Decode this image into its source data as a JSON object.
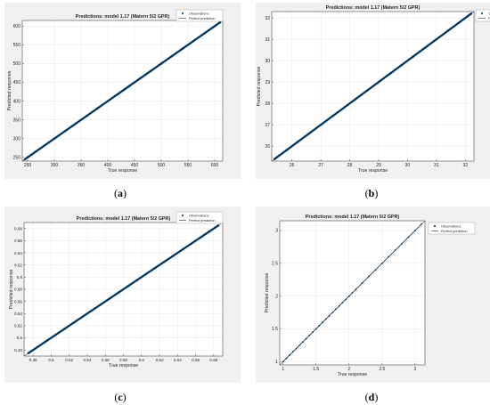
{
  "panels": [
    {
      "caption_letter": "a",
      "chart_data": {
        "type": "scatter",
        "title": "Predictions: model 1.17 (Matern 5/2 GPR)",
        "xlabel": "True response",
        "ylabel": "Predicted response",
        "xlim": [
          240,
          615
        ],
        "ylim": [
          240,
          615
        ],
        "xticks": [
          250,
          300,
          350,
          400,
          450,
          500,
          550,
          600
        ],
        "yticks": [
          250,
          300,
          350,
          400,
          450,
          500,
          550,
          600
        ],
        "legend": [
          "Observations",
          "Perfect prediction"
        ],
        "legend_position": "top-right",
        "grid": true,
        "series": [
          {
            "name": "Observations",
            "x": [
              245,
              250,
              265,
              280,
              300,
              320,
              340,
              360,
              380,
              400,
              420,
              430,
              440,
              450,
              460,
              470,
              480,
              500,
              520,
              540,
              560,
              580,
              600,
              610
            ],
            "y": [
              245,
              250,
              265,
              280,
              300,
              320,
              340,
              360,
              380,
              400,
              420,
              430,
              440,
              450,
              460,
              470,
              480,
              500,
              520,
              540,
              560,
              580,
              600,
              610
            ]
          }
        ],
        "reference_line": {
          "name": "Perfect prediction",
          "x": [
            240,
            615
          ],
          "y": [
            240,
            615
          ]
        }
      }
    },
    {
      "caption_letter": "b",
      "chart_data": {
        "type": "scatter",
        "title": "Predictions: model 1.17 (Matern 5/2 GPR)",
        "xlabel": "True response",
        "ylabel": "Predicted response",
        "xlim": [
          25.3,
          32.3
        ],
        "ylim": [
          25.3,
          32.3
        ],
        "xticks": [
          26,
          27,
          28,
          29,
          30,
          31,
          32
        ],
        "yticks": [
          26,
          27,
          28,
          29,
          30,
          31,
          32
        ],
        "legend": [
          "Observations",
          "Perfect prediction"
        ],
        "legend_position": "top-right",
        "grid": true,
        "series": [
          {
            "name": "Observations",
            "x": [
              25.4,
              25.8,
              26.2,
              26.6,
              27.0,
              27.4,
              27.8,
              28.2,
              28.6,
              29.0,
              29.4,
              29.8,
              30.2,
              30.6,
              31.0,
              31.4,
              31.8,
              32.2
            ],
            "y": [
              25.4,
              25.8,
              26.2,
              26.6,
              27.0,
              27.4,
              27.8,
              28.2,
              28.6,
              29.0,
              29.4,
              29.8,
              30.2,
              30.6,
              31.0,
              31.4,
              31.8,
              32.2
            ]
          }
        ],
        "reference_line": {
          "name": "Perfect prediction",
          "x": [
            25.3,
            32.3
          ],
          "y": [
            25.3,
            32.3
          ]
        }
      }
    },
    {
      "caption_letter": "c",
      "chart_data": {
        "type": "scatter",
        "title": "Predictions: model 1.17 (Matern 5/2 GPR)",
        "xlabel": "True response",
        "ylabel": "Predicted response",
        "xlim": [
          0.47,
          0.69
        ],
        "ylim": [
          0.47,
          0.69
        ],
        "xticks": [
          0.48,
          0.5,
          0.52,
          0.54,
          0.56,
          0.58,
          0.6,
          0.62,
          0.64,
          0.66,
          0.68
        ],
        "yticks": [
          0.48,
          0.5,
          0.52,
          0.54,
          0.56,
          0.58,
          0.6,
          0.62,
          0.64,
          0.66,
          0.68
        ],
        "legend": [
          "Observations",
          "Perfect prediction"
        ],
        "legend_position": "top-right",
        "grid": true,
        "series": [
          {
            "name": "Observations",
            "x": [
              0.475,
              0.485,
              0.495,
              0.505,
              0.515,
              0.525,
              0.535,
              0.545,
              0.555,
              0.565,
              0.575,
              0.585,
              0.595,
              0.605,
              0.615,
              0.625,
              0.635,
              0.645,
              0.655,
              0.665,
              0.675,
              0.685
            ],
            "y": [
              0.475,
              0.485,
              0.495,
              0.505,
              0.515,
              0.525,
              0.535,
              0.545,
              0.555,
              0.565,
              0.575,
              0.585,
              0.595,
              0.605,
              0.615,
              0.625,
              0.635,
              0.645,
              0.655,
              0.665,
              0.675,
              0.685
            ]
          }
        ],
        "reference_line": {
          "name": "Perfect prediction",
          "x": [
            0.47,
            0.69
          ],
          "y": [
            0.47,
            0.69
          ]
        }
      }
    },
    {
      "caption_letter": "d",
      "chart_data": {
        "type": "scatter",
        "title": "Predictions: model 1.17 (Matern 5/2 GPR)",
        "xlabel": "True response",
        "ylabel": "Predicted response",
        "xlim": [
          0.95,
          3.15
        ],
        "ylim": [
          0.95,
          3.15
        ],
        "xticks": [
          1,
          1.5,
          2,
          2.5,
          3
        ],
        "yticks": [
          1,
          1.5,
          2,
          2.5,
          3
        ],
        "legend": [
          "Observations",
          "Perfect prediction"
        ],
        "legend_position": "top-right",
        "grid": true,
        "series": [
          {
            "name": "Observations",
            "x": [
              1.0,
              1.05,
              1.1,
              1.15,
              1.2,
              1.25,
              1.3,
              1.35,
              1.4,
              1.45,
              1.5,
              1.55,
              1.6,
              1.65,
              1.7,
              1.75,
              1.8,
              1.85,
              1.9,
              1.95,
              2.0,
              2.05,
              2.1,
              2.2,
              2.3,
              2.4,
              2.5,
              2.6,
              2.7,
              2.8,
              2.9,
              3.0,
              3.1
            ],
            "y": [
              1.0,
              1.05,
              1.1,
              1.15,
              1.2,
              1.25,
              1.3,
              1.35,
              1.4,
              1.45,
              1.5,
              1.55,
              1.6,
              1.65,
              1.7,
              1.75,
              1.8,
              1.85,
              1.9,
              1.95,
              2.0,
              2.05,
              2.1,
              2.2,
              2.3,
              2.4,
              2.5,
              2.6,
              2.7,
              2.8,
              2.9,
              3.0,
              3.1
            ]
          }
        ],
        "reference_line": {
          "name": "Perfect prediction",
          "x": [
            0.95,
            3.15
          ],
          "y": [
            0.95,
            3.15
          ]
        }
      }
    }
  ],
  "colors": {
    "observation": "#0e4a7a",
    "perfect_line": "#000000",
    "axes": "#262626",
    "grid": "#e2e2e2",
    "figure_bg": "#f0f0f0",
    "plot_bg": "#ffffff"
  }
}
